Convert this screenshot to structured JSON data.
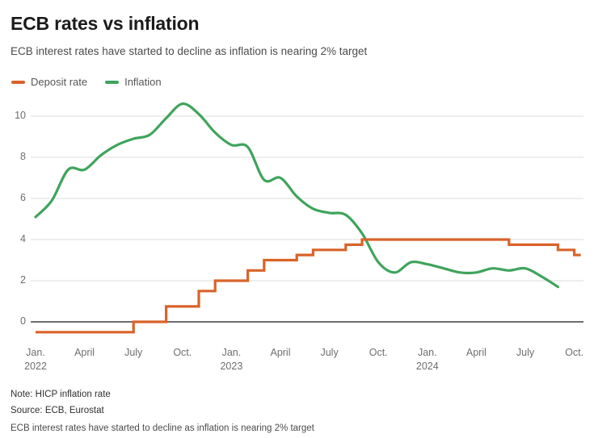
{
  "header": {
    "title": "ECB rates vs inflation",
    "subtitle": "ECB interest rates have started to decline as inflation is nearing 2% target"
  },
  "legend": [
    {
      "label": "Deposit rate",
      "color": "#d9632a"
    },
    {
      "label": "Inflation",
      "color": "#3fa45c"
    }
  ],
  "footer": {
    "note": "Note: HICP inflation rate",
    "source": "Source: ECB, Eurostat",
    "summary": "ECB interest rates have started to decline as inflation is nearing 2% target"
  },
  "chart_data": {
    "type": "line",
    "title": "ECB rates vs inflation",
    "unit": "%",
    "grid": "horizontal",
    "legend_position": "top-left",
    "y_axis": {
      "ticks": [
        0,
        2,
        4,
        6,
        8,
        10
      ],
      "range": [
        -0.9,
        10.9
      ]
    },
    "x_axis": {
      "ticks": [
        {
          "month": "2022-01",
          "label": "Jan.",
          "year": "2022"
        },
        {
          "month": "2022-04",
          "label": "April"
        },
        {
          "month": "2022-07",
          "label": "July"
        },
        {
          "month": "2022-10",
          "label": "Oct."
        },
        {
          "month": "2023-01",
          "label": "Jan.",
          "year": "2023"
        },
        {
          "month": "2023-04",
          "label": "April"
        },
        {
          "month": "2023-07",
          "label": "July"
        },
        {
          "month": "2023-10",
          "label": "Oct."
        },
        {
          "month": "2024-01",
          "label": "Jan.",
          "year": "2024"
        },
        {
          "month": "2024-04",
          "label": "April"
        },
        {
          "month": "2024-07",
          "label": "July"
        },
        {
          "month": "2024-10",
          "label": "Oct."
        }
      ]
    },
    "series": [
      {
        "name": "Deposit rate",
        "line_type": "step",
        "color": "#d9632a",
        "steps": [
          {
            "from": "2022-01",
            "rate": -0.5
          },
          {
            "from": "2022-07",
            "rate": 0.0
          },
          {
            "from": "2022-09",
            "rate": 0.75
          },
          {
            "from": "2022-11",
            "rate": 1.5
          },
          {
            "from": "2022-12",
            "rate": 2.0
          },
          {
            "from": "2023-02",
            "rate": 2.5
          },
          {
            "from": "2023-03",
            "rate": 3.0
          },
          {
            "from": "2023-05",
            "rate": 3.25
          },
          {
            "from": "2023-06",
            "rate": 3.5
          },
          {
            "from": "2023-08",
            "rate": 3.75
          },
          {
            "from": "2023-09",
            "rate": 4.0
          },
          {
            "from": "2024-06",
            "rate": 3.75
          },
          {
            "from": "2024-09",
            "rate": 3.5
          },
          {
            "from": "2024-10",
            "rate": 3.25
          }
        ],
        "end": "2024-10"
      },
      {
        "name": "Inflation",
        "line_type": "smooth",
        "color": "#3fa45c",
        "start": "2022-01",
        "monthly_values": [
          5.1,
          5.9,
          7.4,
          7.4,
          8.1,
          8.6,
          8.9,
          9.1,
          9.9,
          10.6,
          10.1,
          9.2,
          8.6,
          8.5,
          6.9,
          7.0,
          6.1,
          5.5,
          5.3,
          5.2,
          4.3,
          2.9,
          2.4,
          2.9,
          2.8,
          2.6,
          2.4,
          2.4,
          2.6,
          2.5,
          2.6,
          2.2,
          1.7
        ]
      }
    ]
  }
}
